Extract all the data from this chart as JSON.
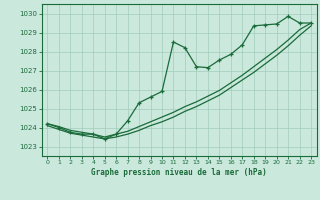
{
  "title": "Graphe pression niveau de la mer (hPa)",
  "bg_color": "#cbe8dc",
  "grid_color": "#a0ccbb",
  "line_color": "#1a6b3a",
  "xlim": [
    -0.5,
    23.5
  ],
  "ylim": [
    1022.5,
    1030.5
  ],
  "xticks": [
    0,
    1,
    2,
    3,
    4,
    5,
    6,
    7,
    8,
    9,
    10,
    11,
    12,
    13,
    14,
    15,
    16,
    17,
    18,
    19,
    20,
    21,
    22,
    23
  ],
  "yticks": [
    1023,
    1024,
    1025,
    1026,
    1027,
    1028,
    1029,
    1030
  ],
  "series1_x": [
    0,
    1,
    2,
    3,
    4,
    5,
    6,
    7,
    8,
    9,
    10,
    11,
    12,
    13,
    14,
    15,
    16,
    17,
    18,
    19,
    20,
    21,
    22,
    23
  ],
  "series1_y": [
    1024.2,
    1024.0,
    1023.75,
    1023.65,
    1023.65,
    1023.4,
    1023.65,
    1024.35,
    1025.3,
    1025.6,
    1025.9,
    1028.5,
    1028.2,
    1027.2,
    1027.15,
    1027.55,
    1027.85,
    1028.35,
    1029.35,
    1029.4,
    1029.45,
    1029.85,
    1029.5,
    1029.5
  ],
  "series2_x": [
    0,
    1,
    2,
    3,
    4,
    5,
    6,
    7,
    8,
    9,
    10,
    11,
    12,
    13,
    14,
    15,
    16,
    17,
    18,
    19,
    20,
    21,
    22,
    23
  ],
  "series2_y": [
    1024.1,
    1023.9,
    1023.7,
    1023.6,
    1023.5,
    1023.4,
    1023.5,
    1023.65,
    1023.85,
    1024.1,
    1024.3,
    1024.55,
    1024.85,
    1025.1,
    1025.4,
    1025.7,
    1026.1,
    1026.5,
    1026.9,
    1027.35,
    1027.8,
    1028.3,
    1028.85,
    1029.35
  ],
  "series3_x": [
    0,
    1,
    2,
    3,
    4,
    5,
    6,
    7,
    8,
    9,
    10,
    11,
    12,
    13,
    14,
    15,
    16,
    17,
    18,
    19,
    20,
    21,
    22,
    23
  ],
  "series3_y": [
    1024.2,
    1024.05,
    1023.85,
    1023.75,
    1023.65,
    1023.5,
    1023.65,
    1023.8,
    1024.05,
    1024.3,
    1024.55,
    1024.8,
    1025.1,
    1025.35,
    1025.65,
    1025.95,
    1026.35,
    1026.75,
    1027.2,
    1027.65,
    1028.1,
    1028.6,
    1029.15,
    1029.5
  ]
}
